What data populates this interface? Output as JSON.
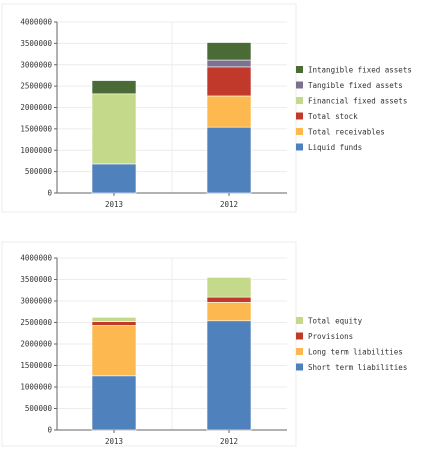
{
  "chart_data": [
    {
      "type": "bar",
      "stacked": true,
      "categories": [
        "2013",
        "2012"
      ],
      "ylim": [
        0,
        4000000
      ],
      "yticks": [
        0,
        500000,
        1000000,
        1500000,
        2000000,
        2500000,
        3000000,
        3500000,
        4000000
      ],
      "ytick_labels": [
        "0",
        "500000",
        "1000000",
        "1500000",
        "2000000",
        "2500000",
        "3000000",
        "3500000",
        "4000000"
      ],
      "grid": true,
      "legend_position": "right",
      "series": [
        {
          "name": "Liquid funds",
          "color": "#4f81bd",
          "values": [
            680000,
            1540000
          ]
        },
        {
          "name": "Total receivables",
          "color": "#fdb850",
          "values": [
            0,
            730000
          ]
        },
        {
          "name": "Total stock",
          "color": "#c0392b",
          "values": [
            0,
            680000
          ]
        },
        {
          "name": "Financial fixed assets",
          "color": "#c4d98a",
          "values": [
            1640000,
            0
          ]
        },
        {
          "name": "Tangible fixed assets",
          "color": "#7d7190",
          "values": [
            0,
            160000
          ]
        },
        {
          "name": "Intangible fixed assets",
          "color": "#4a6b35",
          "values": [
            310000,
            410000
          ]
        }
      ]
    },
    {
      "type": "bar",
      "stacked": true,
      "categories": [
        "2013",
        "2012"
      ],
      "ylim": [
        0,
        4000000
      ],
      "yticks": [
        0,
        500000,
        1000000,
        1500000,
        2000000,
        2500000,
        3000000,
        3500000,
        4000000
      ],
      "ytick_labels": [
        "0",
        "500000",
        "1000000",
        "1500000",
        "2000000",
        "2500000",
        "3000000",
        "3500000",
        "4000000"
      ],
      "grid": true,
      "legend_position": "right",
      "series": [
        {
          "name": "Short term liabilities",
          "color": "#4f81bd",
          "values": [
            1260000,
            2540000
          ]
        },
        {
          "name": "Long term liabilities",
          "color": "#fdb850",
          "values": [
            1170000,
            430000
          ]
        },
        {
          "name": "Provisions",
          "color": "#c0392b",
          "values": [
            90000,
            120000
          ]
        },
        {
          "name": "Total equity",
          "color": "#c4d98a",
          "values": [
            100000,
            460000
          ]
        }
      ]
    }
  ]
}
